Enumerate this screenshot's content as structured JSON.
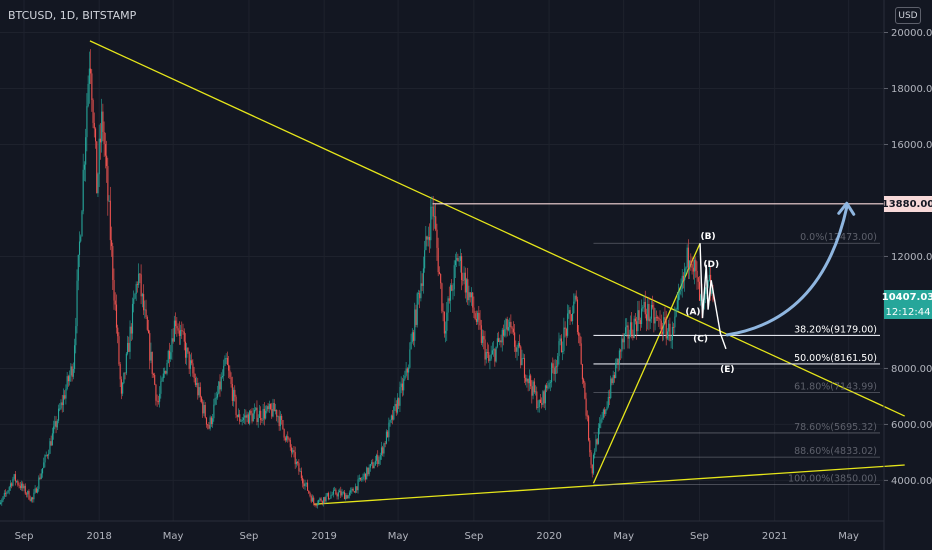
{
  "header": {
    "title": "BTCUSD, 1D, BITSTAMP"
  },
  "currency_button": {
    "label": "USD"
  },
  "current_price": {
    "value": "10407.03",
    "countdown": "12:12:44",
    "color": "#26a69a"
  },
  "marked_level": {
    "value": "13880.00",
    "color": "#f7d9d9"
  },
  "colors": {
    "up": "#26a69a",
    "down": "#ef5350",
    "trend": "#e6e61a",
    "arrow": "#8fb6e0",
    "fib": "#9598a1"
  },
  "chart_data": {
    "type": "candlestick",
    "symbol": "BTCUSD",
    "interval": "1D",
    "exchange": "BITSTAMP",
    "xlabel": "",
    "ylabel": "",
    "ylim": [
      2400,
      21000
    ],
    "y_ticks": [
      "20000.00",
      "18000.00",
      "16000.00",
      "12000.00",
      "8000.00",
      "6000.00",
      "4000.00"
    ],
    "x_ticks": [
      "Sep",
      "2018",
      "May",
      "Sep",
      "2019",
      "May",
      "Sep",
      "2020",
      "May",
      "Sep",
      "2021",
      "May"
    ],
    "x_tick_dates": [
      "2017-09-01",
      "2018-01-01",
      "2018-05-01",
      "2018-09-01",
      "2019-01-01",
      "2019-05-01",
      "2019-09-01",
      "2020-01-01",
      "2020-05-01",
      "2020-09-01",
      "2021-01-01",
      "2021-05-01"
    ],
    "price_path": [
      [
        "2017-07-15",
        2700
      ],
      [
        "2017-08-15",
        4100
      ],
      [
        "2017-09-15",
        3300
      ],
      [
        "2017-10-20",
        5800
      ],
      [
        "2017-11-20",
        8200
      ],
      [
        "2017-12-17",
        19600
      ],
      [
        "2017-12-28",
        14500
      ],
      [
        "2018-01-06",
        17000
      ],
      [
        "2018-02-06",
        6900
      ],
      [
        "2018-03-05",
        11400
      ],
      [
        "2018-04-06",
        6700
      ],
      [
        "2018-05-05",
        9800
      ],
      [
        "2018-06-28",
        5900
      ],
      [
        "2018-07-26",
        8200
      ],
      [
        "2018-08-14",
        6200
      ],
      [
        "2018-10-15",
        6500
      ],
      [
        "2018-11-20",
        4400
      ],
      [
        "2018-12-15",
        3200
      ],
      [
        "2019-01-20",
        3550
      ],
      [
        "2019-02-10",
        3450
      ],
      [
        "2019-04-02",
        4900
      ],
      [
        "2019-05-15",
        7800
      ],
      [
        "2019-06-26",
        13880
      ],
      [
        "2019-07-15",
        9500
      ],
      [
        "2019-08-06",
        12000
      ],
      [
        "2019-09-25",
        8200
      ],
      [
        "2019-10-26",
        9500
      ],
      [
        "2019-12-17",
        6600
      ],
      [
        "2020-02-13",
        10400
      ],
      [
        "2020-03-12",
        4000
      ],
      [
        "2020-03-13",
        5000
      ],
      [
        "2020-04-29",
        8900
      ],
      [
        "2020-06-01",
        10100
      ],
      [
        "2020-07-20",
        9200
      ],
      [
        "2020-08-17",
        12400
      ],
      [
        "2020-09-05",
        10000
      ],
      [
        "2020-09-17",
        11000
      ],
      [
        "2020-09-24",
        10407
      ]
    ],
    "fibonacci": [
      {
        "ratio": "0.0%",
        "price": 12473.0,
        "label": "0.0%(12473.00)"
      },
      {
        "ratio": "38.20%",
        "price": 9179.0,
        "label": "38.20%(9179.00)"
      },
      {
        "ratio": "50.00%",
        "price": 8161.5,
        "label": "50.00%(8161.50)"
      },
      {
        "ratio": "61.80%",
        "price": 7143.99,
        "label": "61.80%(7143.99)"
      },
      {
        "ratio": "78.60%",
        "price": 5695.32,
        "label": "78.60%(5695.32)"
      },
      {
        "ratio": "88.60%",
        "price": 4833.02,
        "label": "88.60%(4833.02)"
      },
      {
        "ratio": "100.00%",
        "price": 3850.0,
        "label": "100.00%(3850.00)"
      }
    ],
    "wave_labels": [
      {
        "label": "(A)",
        "date": "2020-09-05",
        "price": 10000
      },
      {
        "label": "(B)",
        "date": "2020-09-02",
        "price": 12473
      },
      {
        "label": "(C)",
        "date": "2020-09-06",
        "price": 9179
      },
      {
        "label": "(D)",
        "date": "2020-09-12",
        "price": 11700
      },
      {
        "label": "(E)",
        "date": "2020-10-13",
        "price": 8161.5
      }
    ],
    "projection": [
      [
        "2020-09-20",
        11150
      ],
      [
        "2020-10-05",
        9250
      ],
      [
        "2020-10-14",
        8700
      ]
    ],
    "projection_arrow": {
      "from": [
        "2020-10-16",
        9200
      ],
      "to": [
        "2021-04-28",
        13900
      ]
    },
    "trendlines": [
      {
        "from": [
          "2017-12-17",
          19700
        ],
        "to": [
          "2021-07-31",
          6300
        ]
      },
      {
        "from": [
          "2018-12-15",
          3150
        ],
        "to": [
          "2021-07-31",
          4550
        ]
      },
      {
        "from": [
          "2020-03-13",
          3900
        ],
        "to": [
          "2020-09-02",
          12473
        ]
      }
    ],
    "horizontal_level": {
      "from_date": "2019-06-26",
      "price": 13880
    }
  }
}
